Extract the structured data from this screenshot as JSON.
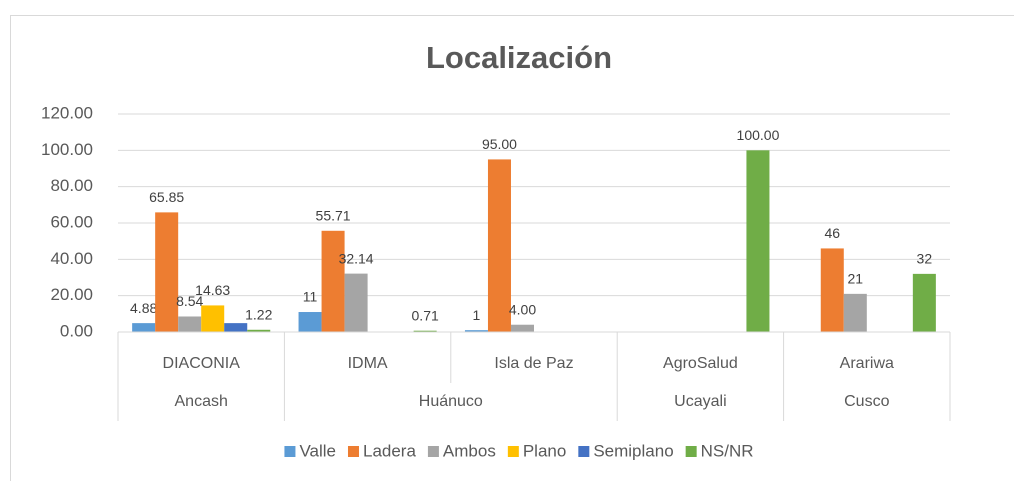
{
  "chart_data": {
    "type": "bar",
    "title": "Localización",
    "categories": [
      "DIACONIA",
      "IDMA",
      "Isla de Paz",
      "AgroSalud",
      "Arariwa"
    ],
    "category_groups": [
      "Ancash",
      "Huánuco",
      "Huánuco",
      "Ucayali",
      "Cusco"
    ],
    "series": [
      {
        "name": "Valle",
        "color": "#5b9bd5",
        "values": [
          4.88,
          11,
          1,
          null,
          null
        ],
        "value_labels": [
          "4.88",
          "11",
          "1",
          null,
          null
        ]
      },
      {
        "name": "Ladera",
        "color": "#ed7d31",
        "values": [
          65.85,
          55.71,
          95,
          null,
          46
        ],
        "value_labels": [
          "65.85",
          "55.71",
          "95.00",
          null,
          "46"
        ]
      },
      {
        "name": "Ambos",
        "color": "#a5a5a5",
        "values": [
          8.54,
          32.14,
          4,
          null,
          21
        ],
        "value_labels": [
          "8.54",
          "32.14",
          "4.00",
          null,
          "21"
        ]
      },
      {
        "name": "Plano",
        "color": "#ffc000",
        "values": [
          14.63,
          null,
          null,
          null,
          null
        ],
        "value_labels": [
          "14.63",
          null,
          null,
          null,
          null
        ]
      },
      {
        "name": "Semiplano",
        "color": "#4472c4",
        "values": [
          4.88,
          null,
          null,
          null,
          null
        ],
        "value_labels": [
          null,
          null,
          null,
          null,
          null
        ]
      },
      {
        "name": "NS/NR",
        "color": "#70ad47",
        "values": [
          1.22,
          0.71,
          null,
          100,
          32
        ],
        "value_labels": [
          "1.22",
          "0.71",
          null,
          "100.00",
          "32"
        ]
      }
    ],
    "ylim": [
      0,
      120
    ],
    "yticks": [
      {
        "value": 0,
        "label": "0.00"
      },
      {
        "value": 20,
        "label": "20.00"
      },
      {
        "value": 40,
        "label": "40.00"
      },
      {
        "value": 60,
        "label": "60.00"
      },
      {
        "value": 80,
        "label": "80.00"
      },
      {
        "value": 100,
        "label": "100.00"
      },
      {
        "value": 120,
        "label": "120.00"
      }
    ],
    "grid": true,
    "legend": "bottom"
  }
}
